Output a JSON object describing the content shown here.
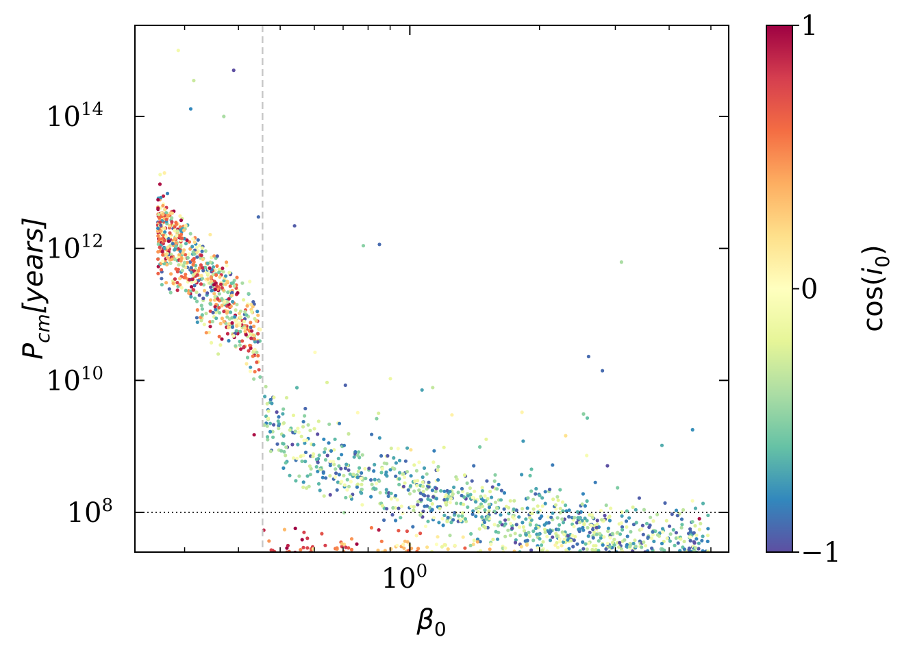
{
  "chart_data": {
    "type": "scatter",
    "xlabel": {
      "base": "β",
      "sub": "0"
    },
    "ylabel": {
      "base": "P",
      "sub": "cm",
      "rest": "[years]"
    },
    "colorbar_label": {
      "base": "cos(",
      "var": "i",
      "sub": "0",
      "close": ")"
    },
    "xscale": "log",
    "yscale": "log",
    "xlim": [
      0.23,
      5.5
    ],
    "ylim": [
      25000000,
      2400000000000000
    ],
    "x_ticks": [
      {
        "value": 1,
        "label_base": "10",
        "label_exp": "0"
      }
    ],
    "y_ticks": [
      {
        "value": 100000000,
        "label_base": "10",
        "label_exp": "8"
      },
      {
        "value": 10000000000,
        "label_base": "10",
        "label_exp": "10"
      },
      {
        "value": 1000000000000,
        "label_base": "10",
        "label_exp": "12"
      },
      {
        "value": 100000000000000,
        "label_base": "10",
        "label_exp": "14"
      }
    ],
    "colorbar": {
      "range": [
        -1,
        1
      ],
      "ticks": [
        {
          "value": 1,
          "label": "1"
        },
        {
          "value": 0,
          "label": "0"
        },
        {
          "value": -1,
          "label": "−1"
        }
      ],
      "colormap": "Spectral",
      "stops": [
        "#5e4fa2",
        "#3288bd",
        "#66c2a5",
        "#abdda4",
        "#e6f598",
        "#ffffbf",
        "#fee08b",
        "#fdae61",
        "#f46d43",
        "#d53e4f",
        "#9e0142"
      ]
    },
    "vline": {
      "x": 0.455,
      "style": "dashed",
      "color": "#c8c8c8"
    },
    "hline": {
      "y": 100000000,
      "style": "dotted",
      "color": "#333333"
    },
    "grid": false,
    "legend": "none",
    "n_points": 2600,
    "cloud_regions": [
      {
        "name": "low-beta-high-period-cluster",
        "x_range": [
          0.26,
          0.45
        ],
        "logP_center": "12.3 at x=0.26 falling to 10.6 at x=0.45",
        "cos_i_mix": "full range, warm colors near x=0.26"
      },
      {
        "name": "upper-branch",
        "x_range": [
          0.45,
          5.0
        ],
        "logP": "9.7 at x=0.45 falling to 7.5 at x=5",
        "cos_i_mix": "mostly negative (blue/purple)"
      },
      {
        "name": "lower-branch",
        "x_range": [
          0.45,
          5.0
        ],
        "logP": "7.0 to 7.8",
        "cos_i_mix": "positive near x=0.5 (yellow/orange/red), green-blue at larger x"
      }
    ],
    "notable_points": [
      {
        "x": 0.29,
        "y": 1000000000000000,
        "cos_i": -0.1
      },
      {
        "x": 0.39,
        "y": 500000000000000,
        "cos_i": -1.0
      },
      {
        "x": 0.37,
        "y": 100000000000000,
        "cos_i": -0.4
      },
      {
        "x": 0.315,
        "y": 350000000000000,
        "cos_i": -0.3
      },
      {
        "x": 0.31,
        "y": 130000000000000,
        "cos_i": -0.8
      },
      {
        "x": 0.445,
        "y": 3000000000000,
        "cos_i": -0.9
      },
      {
        "x": 0.85,
        "y": 1150000000000,
        "cos_i": -0.9
      },
      {
        "x": 0.78,
        "y": 1100000000000,
        "cos_i": -0.5
      },
      {
        "x": 0.54,
        "y": 2200000000000,
        "cos_i": -0.95
      },
      {
        "x": 3.1,
        "y": 620000000000,
        "cos_i": -0.4
      },
      {
        "x": 2.6,
        "y": 23000000000,
        "cos_i": -0.9
      },
      {
        "x": 2.8,
        "y": 14000000000,
        "cos_i": -0.9
      },
      {
        "x": 0.435,
        "y": 1500000000,
        "cos_i": 0.95
      },
      {
        "x": 4.7,
        "y": 80000000,
        "cos_i": 0.95
      }
    ]
  }
}
